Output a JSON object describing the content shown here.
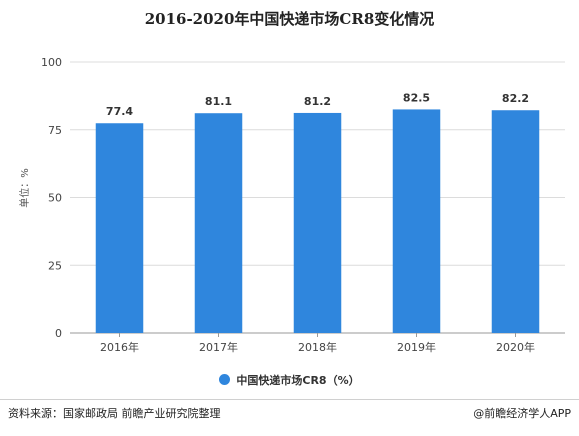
{
  "title": "2016-2020年中国快递市场CR8变化情况",
  "chart_data": {
    "type": "bar",
    "title": "2016-2020年中国快递市场CR8变化情况",
    "categories": [
      "2016年",
      "2017年",
      "2018年",
      "2019年",
      "2020年"
    ],
    "series": [
      {
        "name": "中国快递市场CR8（%）",
        "values": [
          77.4,
          81.1,
          81.2,
          82.5,
          82.2
        ]
      }
    ],
    "data_labels": [
      "77.4",
      "81.1",
      "81.2",
      "82.5",
      "82.2"
    ],
    "ylabel": "单位：%",
    "xlabel": "",
    "ylim": [
      0,
      100
    ],
    "yticks": [
      0,
      25,
      50,
      75,
      100
    ],
    "ytick_labels": [
      "0",
      "25",
      "50",
      "75",
      "100"
    ],
    "grid": true,
    "legend_position": "bottom",
    "bar_color": "#2f86dd"
  },
  "legend": {
    "label": "中国快递市场CR8（%）"
  },
  "footer": {
    "source": "资料来源：国家邮政局 前瞻产业研究院整理",
    "brand": "@前瞻经济学人APP"
  }
}
